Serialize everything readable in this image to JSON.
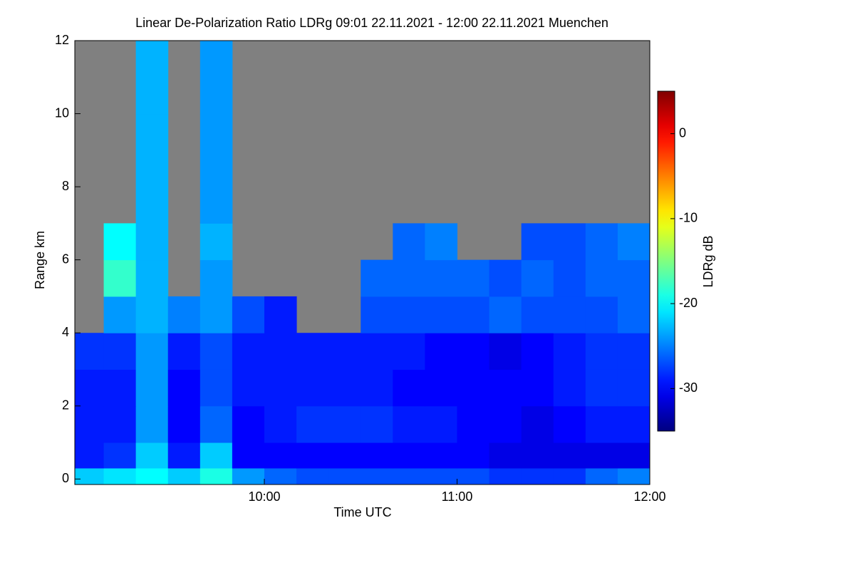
{
  "chart_data": {
    "type": "heatmap",
    "title": "Linear De-Polarization Ratio LDRg   09:01 22.11.2021 - 12:00 22.11.2021 Muenchen",
    "xlabel": "Time UTC",
    "ylabel": "Range km",
    "colorbar_label": "LDRg dB",
    "colormap": "jet",
    "missing_color": "#808080",
    "x_edges": [
      9.0167,
      9.1667,
      9.3333,
      9.5,
      9.6667,
      9.8333,
      10,
      10.1667,
      10.3333,
      10.5,
      10.6667,
      10.8333,
      11,
      11.1667,
      11.3333,
      11.5,
      11.6667,
      11.8333,
      12
    ],
    "y_edges": [
      -0.15,
      0.3,
      1,
      2,
      3,
      4,
      5,
      6,
      7,
      8,
      10,
      12
    ],
    "z": [
      [
        -22,
        -21,
        -20,
        -22,
        -19,
        -24,
        -26,
        -27,
        -27,
        -27,
        -27,
        -27,
        -27,
        -28,
        -28,
        -28,
        -26,
        -25
      ],
      [
        -29,
        -28,
        -22,
        -29,
        -22,
        -30,
        -30,
        -30,
        -30,
        -30,
        -30,
        -30,
        -30,
        -31,
        -31,
        -31,
        -31,
        -31
      ],
      [
        -29,
        -29,
        -24,
        -30,
        -26,
        -30,
        -29,
        -28,
        -28,
        -28,
        -29,
        -29,
        -30,
        -30,
        -31,
        -30,
        -29,
        -29
      ],
      [
        -29,
        -29,
        -24,
        -30,
        -27,
        -29,
        -29,
        -29,
        -29,
        -29,
        -30,
        -30,
        -30,
        -30,
        -30,
        -29,
        -28,
        -28
      ],
      [
        -28,
        -28,
        -24,
        -29,
        -27,
        -29,
        -29,
        -29,
        -29,
        -29,
        -29,
        -30,
        -30,
        -31,
        -30,
        -29,
        -28,
        -28
      ],
      [
        null,
        -24,
        -23,
        -25,
        -24,
        -27,
        -29,
        null,
        null,
        -27,
        -27,
        -27,
        -27,
        -26,
        -27,
        -27,
        -27,
        -26
      ],
      [
        null,
        -18,
        -23,
        null,
        -24,
        null,
        null,
        null,
        null,
        -26,
        -26,
        -26,
        -26,
        -27,
        -26,
        -27,
        -26,
        -26
      ],
      [
        null,
        -20,
        -23,
        null,
        -23,
        null,
        null,
        null,
        null,
        null,
        -26,
        -25,
        null,
        null,
        -27,
        -27,
        -26,
        -25
      ],
      [
        null,
        null,
        -23,
        null,
        -24,
        null,
        null,
        null,
        null,
        null,
        null,
        null,
        null,
        null,
        null,
        null,
        null,
        null
      ],
      [
        null,
        null,
        -23,
        null,
        -24,
        null,
        null,
        null,
        null,
        null,
        null,
        null,
        null,
        null,
        null,
        null,
        null,
        null
      ],
      [
        null,
        null,
        -23,
        null,
        -24,
        null,
        null,
        null,
        null,
        null,
        null,
        null,
        null,
        null,
        null,
        null,
        null,
        null
      ]
    ],
    "xlim": [
      9.0167,
      12
    ],
    "ylim": [
      -0.15,
      12
    ],
    "xticks": [
      {
        "value": 10,
        "label": "10:00"
      },
      {
        "value": 11,
        "label": "11:00"
      },
      {
        "value": 12,
        "label": "12:00"
      }
    ],
    "yticks": [
      0,
      2,
      4,
      6,
      8,
      10,
      12
    ],
    "clim": [
      -35,
      5
    ],
    "cticks": [
      -30,
      -20,
      -10,
      0
    ]
  }
}
